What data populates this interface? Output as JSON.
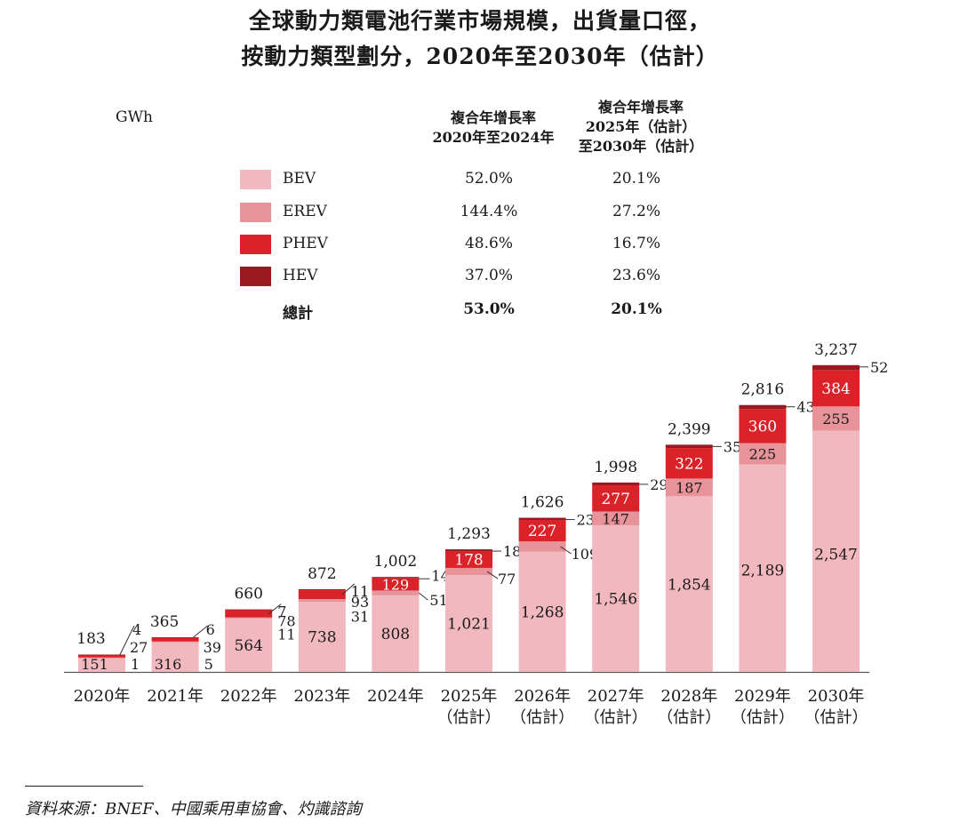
{
  "title_line1": "全球動力類電池行業市場規模，出貨量口徑，",
  "title_line2": "按動力類型劃分，2020年至2030年（估計）",
  "unit": "GWh",
  "cagr_header_1": "複合年增長率\n2020年至2024年",
  "cagr_header_2": "複合年增長率\n2025年（估計）\n至2030年（估計）",
  "legend": [
    {
      "name": "BEV",
      "cagr1": "52.0%",
      "cagr2": "20.1%",
      "color": "#f2b8c0"
    },
    {
      "name": "EREV",
      "cagr1": "144.4%",
      "cagr2": "27.2%",
      "color": "#e8939a"
    },
    {
      "name": "PHEV",
      "cagr1": "48.6%",
      "cagr2": "16.7%",
      "color": "#dc2229"
    },
    {
      "name": "HEV",
      "cagr1": "37.0%",
      "cagr2": "23.6%",
      "color": "#9b1a22"
    }
  ],
  "total_row": {
    "name": "總計",
    "cagr1": "53.0%",
    "cagr2": "20.1%"
  },
  "chart_data": {
    "type": "bar",
    "stacked": true,
    "categories": [
      "2020年",
      "2021年",
      "2022年",
      "2023年",
      "2024年",
      "2025年\n（估計）",
      "2026年\n（估計）",
      "2027年\n（估計）",
      "2028年\n（估計）",
      "2029年\n（估計）",
      "2030年\n（估計）"
    ],
    "series": [
      {
        "name": "BEV",
        "values": [
          151,
          316,
          564,
          738,
          808,
          1021,
          1268,
          1546,
          1854,
          2189,
          2547
        ]
      },
      {
        "name": "EREV",
        "values": [
          1,
          5,
          11,
          31,
          51,
          77,
          109,
          147,
          187,
          225,
          255
        ]
      },
      {
        "name": "PHEV",
        "values": [
          27,
          39,
          78,
          93,
          129,
          178,
          227,
          277,
          322,
          360,
          384
        ]
      },
      {
        "name": "HEV",
        "values": [
          4,
          6,
          7,
          11,
          14,
          18,
          23,
          29,
          35,
          43,
          52
        ]
      }
    ],
    "value_labels": [
      [
        "151",
        "316",
        "564",
        "738",
        "808",
        "1,021",
        "1,268",
        "1,546",
        "1,854",
        "2,189",
        "2,547"
      ],
      [
        "1",
        "5",
        "11",
        "31",
        "51",
        "77",
        "109",
        "147",
        "187",
        "225",
        "255"
      ],
      [
        "27",
        "39",
        "78",
        "93",
        "129",
        "178",
        "227",
        "277",
        "322",
        "360",
        "384"
      ],
      [
        "4",
        "6",
        "7",
        "11",
        "14",
        "18",
        "23",
        "29",
        "35",
        "43",
        "52"
      ]
    ],
    "totals": [
      "183",
      "365",
      "660",
      "872",
      "1,002",
      "1,293",
      "1,626",
      "1,998",
      "2,399",
      "2,816",
      "3,237"
    ],
    "ylim": [
      0,
      3500
    ],
    "ylabel": "GWh"
  },
  "source": "資料來源：BNEF、中國乘用車協會、灼識諮詢"
}
